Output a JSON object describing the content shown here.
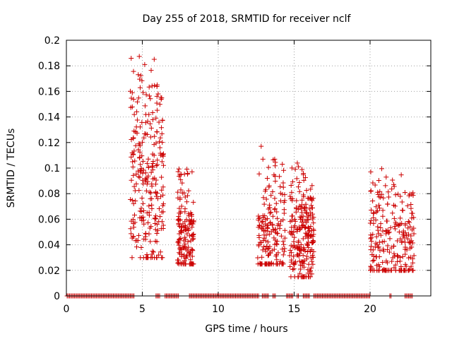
{
  "chart_data": {
    "type": "scatter",
    "title": "Day 255 of 2018, SRMTID for receiver nclf",
    "xlabel": "GPS time / hours",
    "ylabel": "SRMTID / TECUs",
    "xlim": [
      0,
      24
    ],
    "ylim": [
      0,
      0.2
    ],
    "x_ticks": [
      0,
      5,
      10,
      15,
      20
    ],
    "y_ticks": [
      0,
      0.02,
      0.04,
      0.06,
      0.08,
      0.1,
      0.12,
      0.14,
      0.16,
      0.18,
      0.2
    ],
    "grid": true,
    "marker": "+",
    "color": "#cc0000",
    "zero_segments": [
      [
        0.05,
        4.5
      ],
      [
        5.9,
        6.2
      ],
      [
        6.5,
        7.4
      ],
      [
        8.1,
        12.7
      ],
      [
        12.9,
        13.3
      ],
      [
        13.6,
        13.8
      ],
      [
        14.5,
        14.9
      ],
      [
        15.2,
        15.35
      ],
      [
        15.6,
        16.0
      ],
      [
        16.3,
        20.05
      ],
      [
        21.3,
        21.45
      ],
      [
        22.3,
        22.8
      ]
    ],
    "clusters": [
      {
        "t0": 4.2,
        "t1": 6.4,
        "n": 260,
        "lo": 0.03,
        "hi": 0.19,
        "mid": 0.095
      },
      {
        "t0": 7.3,
        "t1": 8.4,
        "n": 150,
        "lo": 0.025,
        "hi": 0.1,
        "mid": 0.05
      },
      {
        "t0": 12.6,
        "t1": 14.4,
        "n": 170,
        "lo": 0.025,
        "hi": 0.12,
        "mid": 0.05
      },
      {
        "t0": 14.7,
        "t1": 16.3,
        "n": 220,
        "lo": 0.015,
        "hi": 0.105,
        "mid": 0.045
      },
      {
        "t0": 20.0,
        "t1": 22.9,
        "n": 230,
        "lo": 0.02,
        "hi": 0.105,
        "mid": 0.045
      }
    ]
  }
}
